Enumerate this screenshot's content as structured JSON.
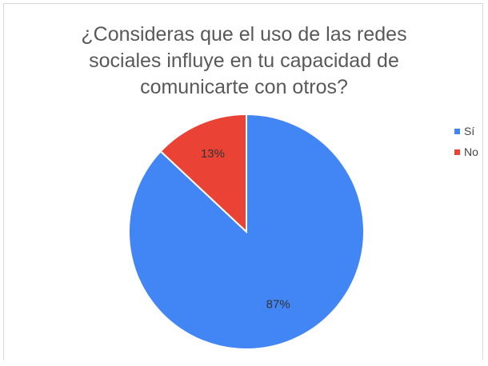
{
  "chart_data": {
    "type": "pie",
    "title_lines": [
      "¿Consideras que el uso de las redes",
      "sociales influye en tu capacidad de",
      "comunicarte con otros?"
    ],
    "categories": [
      "Sí",
      "No"
    ],
    "values": [
      87,
      13
    ],
    "data_labels": [
      "87%",
      "13%"
    ],
    "colors": [
      "#4285f4",
      "#ea4335"
    ],
    "legend_position": "right",
    "start_angle_deg": 0,
    "direction": "clockwise"
  }
}
